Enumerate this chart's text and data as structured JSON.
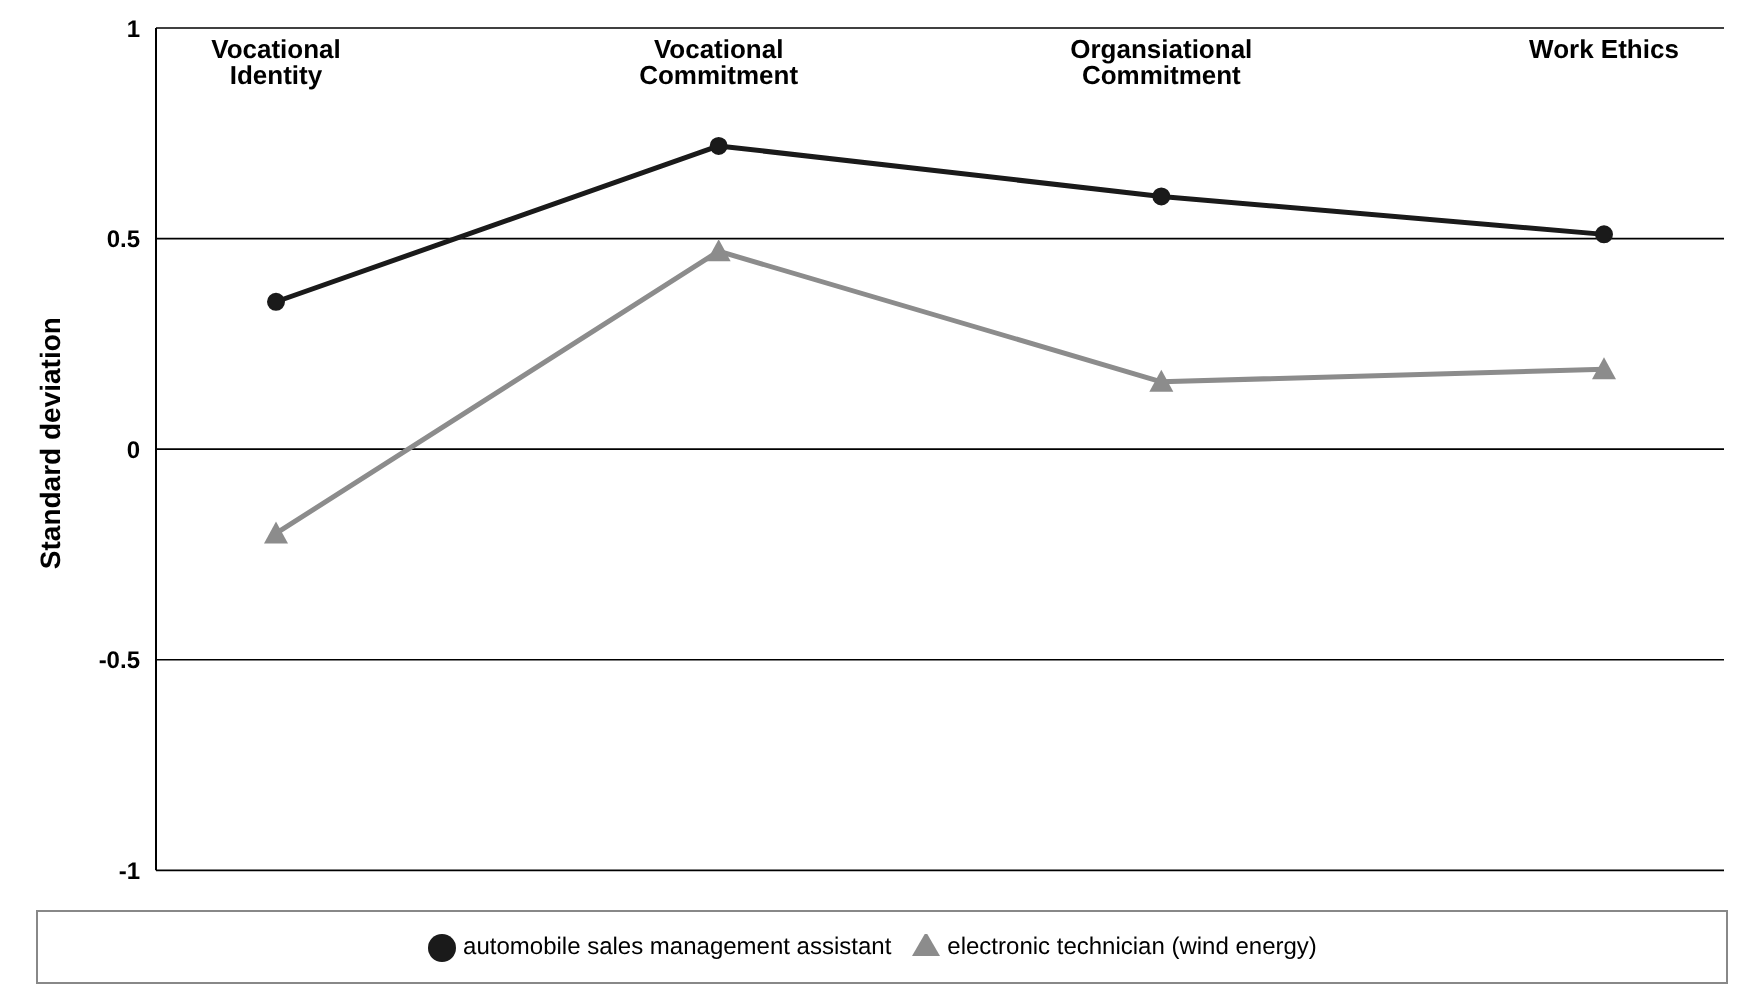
{
  "chart_data": {
    "type": "line",
    "ylabel": "Standard deviation",
    "categories": [
      "Vocational Identity",
      "Vocational Commitment",
      "Organsiational Commitment",
      "Work Ethics"
    ],
    "series": [
      {
        "name": "automobile sales management assistant",
        "color": "#1a1a1a",
        "marker": "circle",
        "values": [
          0.35,
          0.72,
          0.6,
          0.51
        ]
      },
      {
        "name": "electronic technician (wind energy)",
        "color": "#8c8c8c",
        "marker": "triangle",
        "values": [
          -0.2,
          0.47,
          0.16,
          0.19
        ]
      }
    ],
    "ylim": [
      -1,
      1
    ],
    "yticks": [
      -1,
      -0.5,
      0,
      0.5,
      1
    ],
    "grid": "y",
    "legend": "bottom",
    "line_style": "solid"
  }
}
